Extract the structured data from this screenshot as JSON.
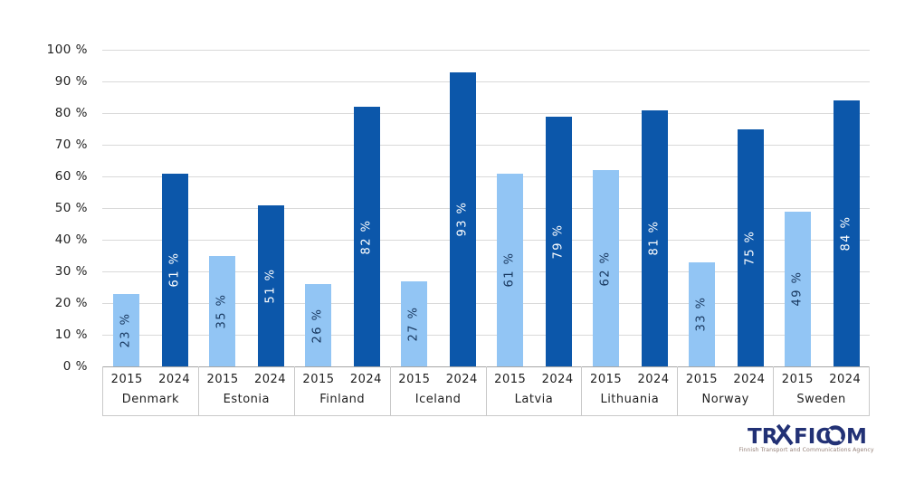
{
  "chart_data": {
    "type": "bar",
    "categories": [
      "Denmark",
      "Estonia",
      "Finland",
      "Iceland",
      "Latvia",
      "Lithuania",
      "Norway",
      "Sweden"
    ],
    "series": [
      {
        "name": "2015",
        "values": [
          23,
          35,
          26,
          27,
          61,
          62,
          33,
          49
        ],
        "color": "#92C5F4",
        "label_color": "#17365D"
      },
      {
        "name": "2024",
        "values": [
          61,
          51,
          82,
          93,
          79,
          81,
          75,
          84
        ],
        "color": "#0C57AA",
        "label_color": "#FFFFFF"
      }
    ],
    "value_suffix": " %",
    "yticks": [
      "100 %",
      "90 %",
      "80 %",
      "70 %",
      "60 %",
      "50 %",
      "40 %",
      "30 %",
      "20 %",
      "10 %",
      "0 %"
    ],
    "ylim": [
      0,
      100
    ],
    "grid": true,
    "legend_position": "none",
    "title": "",
    "xlabel": "",
    "ylabel": ""
  },
  "branding": {
    "logo_name": "TRAFICOM",
    "logo_parts": {
      "p1": "TR",
      "p2": "FIC",
      "p3": "M"
    },
    "tagline": "Finnish Transport and Communications Agency"
  },
  "colors": {
    "background": "#FFFFFF",
    "gridline": "#D9D9D9",
    "axis_line": "#A6A6A6",
    "label_box_border": "#C9C9C9",
    "text": "#1F1F1F",
    "logo_navy": "#223175",
    "tagline_gray": "#96827A"
  }
}
